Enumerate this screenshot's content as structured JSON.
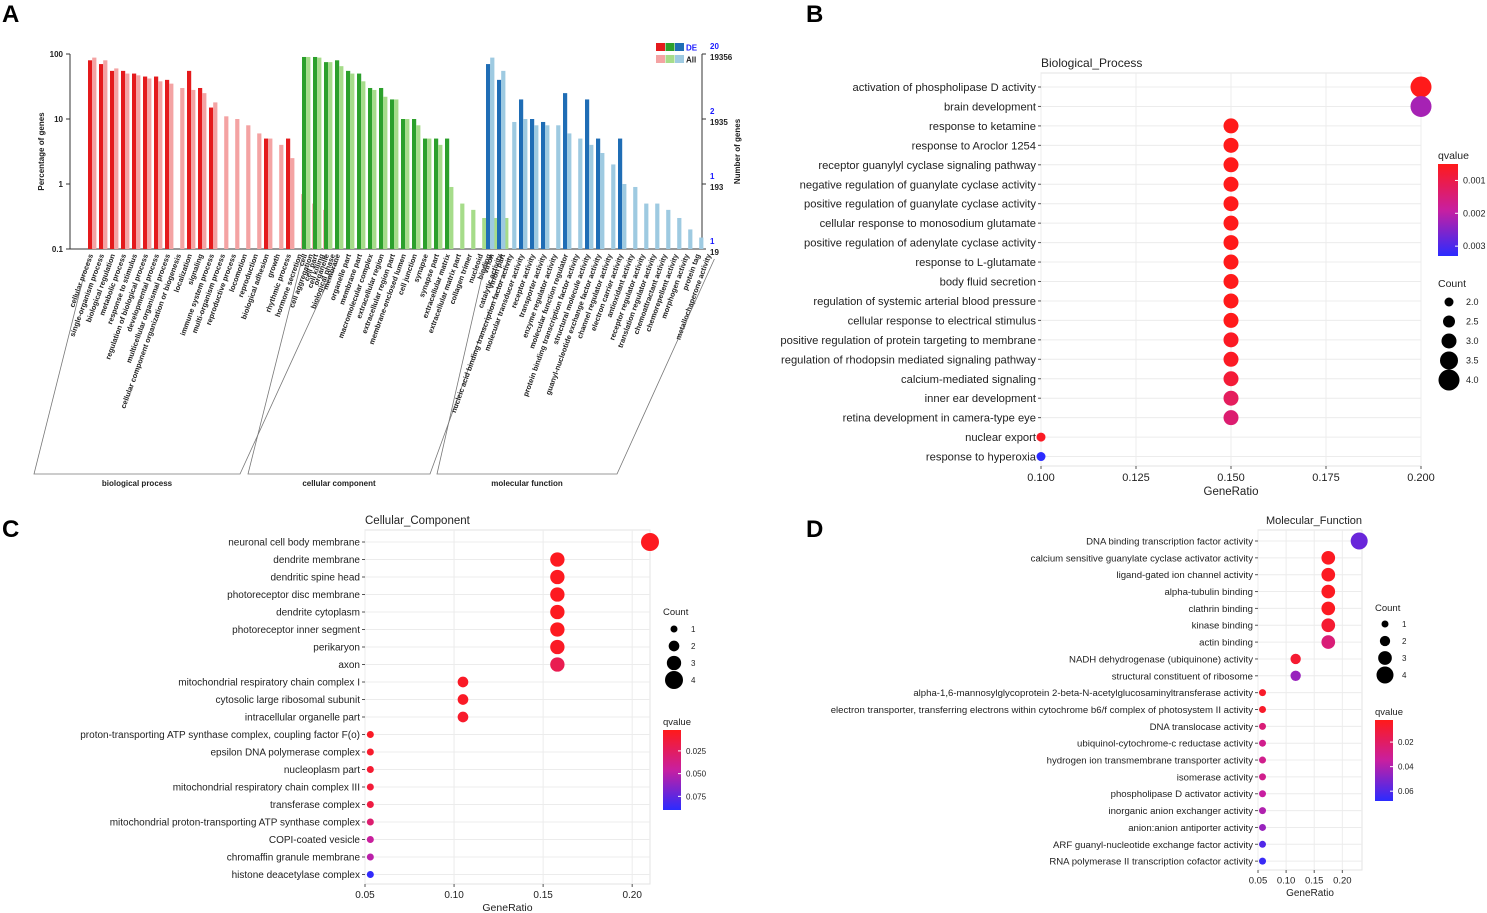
{
  "panels": {
    "a": "A",
    "b": "B",
    "c": "C",
    "d": "D"
  },
  "colors": {
    "bp_de": "#e41a1c",
    "bp_all": "#f4a3a3",
    "cc_de": "#2ca02c",
    "cc_all": "#a6dc8a",
    "mf_de": "#1f6db5",
    "mf_all": "#9ecae1",
    "q_high": "#ff1a1a",
    "q_mid": "#c81fa0",
    "q_low": "#2b2bff"
  },
  "chart_data": [
    {
      "type": "bar",
      "panel": "A",
      "ylabel": "Percentage of genes",
      "y2label": "Number of genes",
      "yscale": "log",
      "ylim": [
        0.1,
        100
      ],
      "yticks": [
        "100",
        "10",
        "1",
        "0.1"
      ],
      "y2ticks_de": [
        "20",
        "2",
        "1",
        "1"
      ],
      "y2ticks_all": [
        "19356",
        "1935",
        "193",
        "19"
      ],
      "legend": {
        "de": "DE",
        "all": "All"
      },
      "groups": [
        {
          "name": "biological process",
          "categories": [
            "cellular process",
            "single-organism process",
            "biological regulation",
            "metabolic process",
            "response to stimulus",
            "regulation of biological process",
            "developmental process",
            "multicellular organismal process",
            "cellular component organization or biogenesis",
            "localization",
            "signaling",
            "immune system process",
            "multi-organism process",
            "reproductive process",
            "locomotion",
            "reproduction",
            "biological adhesion",
            "growth",
            "rhythmic process",
            "hormone secretion",
            "cell aggregation",
            "cell killing",
            "biological phase"
          ],
          "de": [
            80,
            70,
            55,
            55,
            50,
            45,
            45,
            40,
            0,
            55,
            30,
            15,
            0,
            0,
            0,
            0,
            5,
            0,
            5,
            0,
            0,
            0,
            0
          ],
          "all": [
            88,
            80,
            60,
            50,
            47,
            42,
            38,
            35,
            30,
            28,
            25,
            18,
            11,
            10,
            8,
            6,
            5,
            4,
            2.5,
            0.7,
            0.5,
            0.4,
            0
          ]
        },
        {
          "name": "cellular component",
          "categories": [
            "cell",
            "cell part",
            "organelle",
            "membrane",
            "organelle part",
            "membrane part",
            "macromolecular complex",
            "extracellular region",
            "extracellular region part",
            "membrane-enclosed lumen",
            "cell junction",
            "synapse",
            "synapse part",
            "extracellular matrix",
            "extracellular matrix part",
            "collagen trimer",
            "nucleoid",
            "virion",
            "virion part"
          ],
          "de": [
            90,
            90,
            75,
            80,
            55,
            50,
            30,
            30,
            20,
            10,
            10,
            5,
            5,
            5,
            0,
            0,
            0,
            0,
            0
          ],
          "all": [
            90,
            88,
            75,
            65,
            50,
            38,
            28,
            22,
            20,
            10,
            8,
            5,
            4,
            0.9,
            0.5,
            0.4,
            0.3,
            0.3,
            0.3
          ]
        },
        {
          "name": "molecular function",
          "categories": [
            "binding",
            "catalytic activity",
            "nucleic acid binding transcription factor activity",
            "molecular transducer activity",
            "receptor activity",
            "transporter activity",
            "enzyme regulator activity",
            "molecular function regulator",
            "protein binding transcription factor activity",
            "structural molecule activity",
            "guanyl-nucleotide exchange factor activity",
            "channel regulator activity",
            "electron carrier activity",
            "antioxidant activity",
            "receptor regulator activity",
            "translation regulator activity",
            "chemoattractant activity",
            "chemorepellent activity",
            "morphogen activity",
            "protein tag",
            "metallochaperone activity"
          ],
          "de": [
            70,
            40,
            0,
            20,
            10,
            9,
            0,
            25,
            0,
            20,
            5,
            0,
            5,
            0,
            0,
            0,
            0,
            0,
            0,
            0,
            0
          ],
          "all": [
            88,
            55,
            9,
            10,
            8,
            8,
            8,
            6,
            5,
            4,
            3,
            2,
            1,
            0.9,
            0.5,
            0.5,
            0.4,
            0.3,
            0.2,
            0.15,
            0
          ]
        }
      ]
    },
    {
      "type": "scatter",
      "panel": "B",
      "title": "Biological_Process",
      "xlabel": "GeneRatio",
      "xlim": [
        0.1,
        0.2
      ],
      "xticks": [
        "0.100",
        "0.125",
        "0.150",
        "0.175",
        "0.200"
      ],
      "legend_q": {
        "title": "qvalue",
        "ticks": [
          "0.001",
          "0.002",
          "0.003"
        ],
        "range": [
          0.0005,
          0.0033
        ]
      },
      "legend_count": {
        "title": "Count",
        "values": [
          2.0,
          2.5,
          3.0,
          3.5,
          4.0
        ],
        "labels": [
          "2.0",
          "2.5",
          "3.0",
          "3.5",
          "4.0"
        ]
      },
      "terms": [
        "activation of phospholipase D activity",
        "brain development",
        "response to ketamine",
        "response to Aroclor 1254",
        "receptor guanylyl cyclase signaling pathway",
        "negative regulation of guanylate cyclase activity",
        "positive regulation of guanylate cyclase activity",
        "cellular response to monosodium glutamate",
        "positive regulation of adenylate cyclase activity",
        "response to L-glutamate",
        "body fluid secretion",
        "regulation of systemic arterial blood pressure",
        "cellular response to electrical stimulus",
        "positive regulation of protein targeting to membrane",
        "regulation of rhodopsin mediated signaling pathway",
        "calcium-mediated signaling",
        "inner ear development",
        "retina development in camera-type eye",
        "nuclear export",
        "response to hyperoxia"
      ],
      "x": [
        0.2,
        0.2,
        0.15,
        0.15,
        0.15,
        0.15,
        0.15,
        0.15,
        0.15,
        0.15,
        0.15,
        0.15,
        0.15,
        0.15,
        0.15,
        0.15,
        0.15,
        0.15,
        0.1,
        0.1
      ],
      "count": [
        4,
        4,
        3,
        3,
        3,
        3,
        3,
        3,
        3,
        3,
        3,
        3,
        3,
        3,
        3,
        3,
        3,
        3,
        2,
        2
      ],
      "qvalue": [
        0.0005,
        0.0022,
        0.0005,
        0.0005,
        0.0005,
        0.0005,
        0.0005,
        0.0005,
        0.0005,
        0.0005,
        0.0005,
        0.0005,
        0.0005,
        0.0006,
        0.0006,
        0.0008,
        0.0012,
        0.0014,
        0.0006,
        0.0033
      ]
    },
    {
      "type": "scatter",
      "panel": "C",
      "title": "Cellular_Component",
      "xlabel": "GeneRatio",
      "xlim": [
        0.05,
        0.21
      ],
      "xticks_values": [
        0.05,
        0.1,
        0.15,
        0.2
      ],
      "xticks": [
        "0.05",
        "0.10",
        "0.15",
        "0.20"
      ],
      "legend_count": {
        "title": "Count",
        "values": [
          1,
          2,
          3,
          4
        ],
        "labels": [
          "1",
          "2",
          "3",
          "4"
        ]
      },
      "legend_q": {
        "title": "qvalue",
        "ticks": [
          "0.025",
          "0.050",
          "0.075"
        ],
        "range": [
          0.002,
          0.09
        ]
      },
      "terms": [
        "neuronal cell body membrane",
        "dendrite membrane",
        "dendritic spine head",
        "photoreceptor disc membrane",
        "dendrite cytoplasm",
        "photoreceptor inner segment",
        "perikaryon",
        "axon",
        "mitochondrial respiratory chain complex I",
        "cytosolic large ribosomal subunit",
        "intracellular organelle part",
        "proton-transporting ATP synthase complex, coupling factor F(o)",
        "epsilon DNA polymerase complex",
        "nucleoplasm part",
        "mitochondrial respiratory chain complex III",
        "transferase complex",
        "mitochondrial proton-transporting ATP synthase complex",
        "COPI-coated vesicle",
        "chromaffin granule membrane",
        "histone deacetylase complex"
      ],
      "x": [
        0.21,
        0.158,
        0.158,
        0.158,
        0.158,
        0.158,
        0.158,
        0.158,
        0.105,
        0.105,
        0.105,
        0.053,
        0.053,
        0.053,
        0.053,
        0.053,
        0.053,
        0.053,
        0.053,
        0.053
      ],
      "count": [
        4,
        3,
        3,
        3,
        3,
        3,
        3,
        3,
        2,
        2,
        2,
        1,
        1,
        1,
        1,
        1,
        1,
        1,
        1,
        1
      ],
      "qvalue": [
        0.004,
        0.004,
        0.004,
        0.004,
        0.004,
        0.004,
        0.006,
        0.02,
        0.006,
        0.006,
        0.008,
        0.006,
        0.008,
        0.01,
        0.012,
        0.015,
        0.03,
        0.045,
        0.05,
        0.088
      ]
    },
    {
      "type": "scatter",
      "panel": "D",
      "title": "Molecular_Function",
      "xlabel": "GeneRatio",
      "xlim": [
        0.05,
        0.235
      ],
      "xticks_values": [
        0.05,
        0.1,
        0.15,
        0.2
      ],
      "xticks": [
        "0.05",
        "0.10",
        "0.15",
        "0.20"
      ],
      "legend_count": {
        "title": "Count",
        "values": [
          1,
          2,
          3,
          4
        ],
        "labels": [
          "1",
          "2",
          "3",
          "4"
        ]
      },
      "legend_q": {
        "title": "qvalue",
        "ticks": [
          "0.02",
          "0.04",
          "0.06"
        ],
        "range": [
          0.002,
          0.068
        ]
      },
      "terms": [
        "DNA binding transcription factor activity",
        "calcium sensitive guanylate cyclase activator activity",
        "ligand-gated ion channel activity",
        "alpha-tubulin binding",
        "clathrin binding",
        "kinase binding",
        "actin binding",
        "NADH dehydrogenase (ubiquinone) activity",
        "structural constituent of ribosome",
        "alpha-1,6-mannosylglycoprotein 2-beta-N-acetylglucosaminyltransferase activity",
        "electron transporter, transferring electrons within cytochrome b6/f complex of photosystem II activity",
        "DNA translocase activity",
        "ubiquinol-cytochrome-c reductase activity",
        "hydrogen ion transmembrane transporter activity",
        "isomerase activity",
        "phospholipase D activator activity",
        "inorganic anion exchanger activity",
        "anion:anion antiporter activity",
        "ARF guanyl-nucleotide exchange factor activity",
        "RNA polymerase II transcription cofactor activity"
      ],
      "x": [
        0.23,
        0.175,
        0.175,
        0.175,
        0.175,
        0.175,
        0.175,
        0.117,
        0.117,
        0.058,
        0.058,
        0.058,
        0.058,
        0.058,
        0.058,
        0.058,
        0.058,
        0.058,
        0.058,
        0.058
      ],
      "count": [
        4,
        3,
        3,
        3,
        3,
        3,
        3,
        2,
        2,
        1,
        1,
        1,
        1,
        1,
        1,
        1,
        1,
        1,
        1,
        1
      ],
      "qvalue": [
        0.055,
        0.004,
        0.004,
        0.004,
        0.004,
        0.008,
        0.025,
        0.008,
        0.045,
        0.006,
        0.006,
        0.025,
        0.03,
        0.03,
        0.03,
        0.035,
        0.04,
        0.045,
        0.06,
        0.065
      ]
    }
  ]
}
